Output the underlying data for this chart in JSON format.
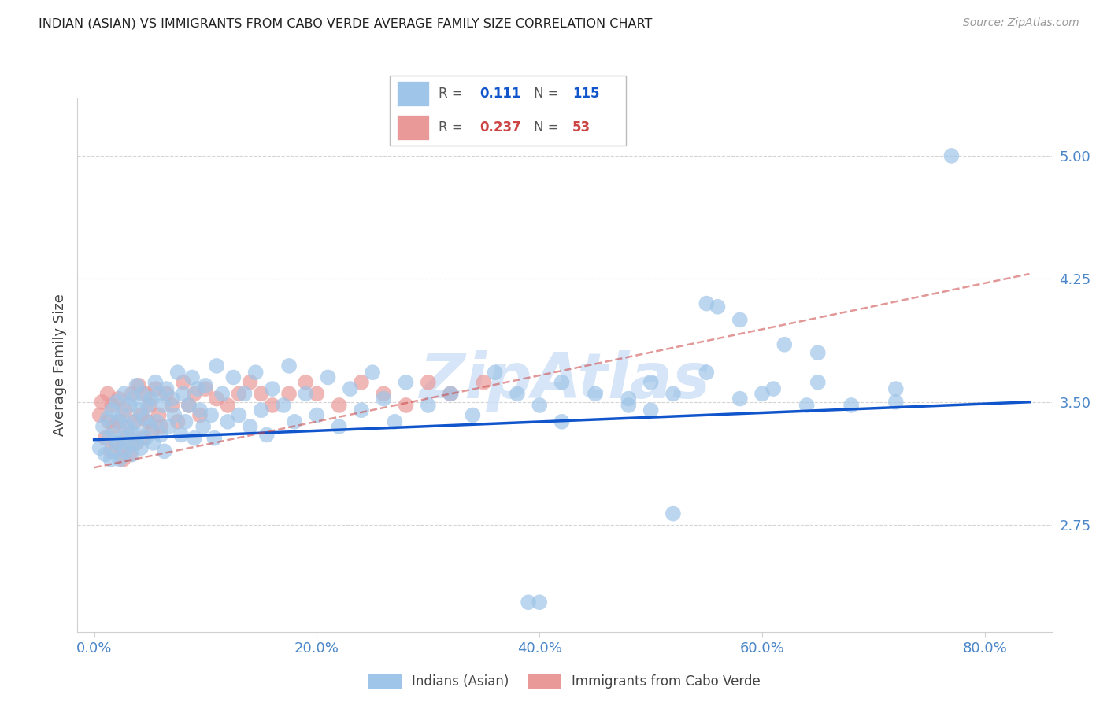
{
  "title": "INDIAN (ASIAN) VS IMMIGRANTS FROM CABO VERDE AVERAGE FAMILY SIZE CORRELATION CHART",
  "source": "Source: ZipAtlas.com",
  "ylabel": "Average Family Size",
  "xlabel_ticks": [
    "0.0%",
    "20.0%",
    "40.0%",
    "60.0%",
    "80.0%"
  ],
  "xlabel_vals": [
    0.0,
    0.2,
    0.4,
    0.6,
    0.8
  ],
  "ytick_labels": [
    "2.75",
    "3.50",
    "4.25",
    "5.00"
  ],
  "ytick_vals": [
    2.75,
    3.5,
    4.25,
    5.0
  ],
  "xlim": [
    -0.015,
    0.86
  ],
  "ylim": [
    2.1,
    5.35
  ],
  "R_blue": "0.111",
  "N_blue": "115",
  "R_pink": "0.237",
  "N_pink": "53",
  "legend_labels": [
    "Indians (Asian)",
    "Immigrants from Cabo Verde"
  ],
  "blue_color": "#9fc5e8",
  "pink_color": "#ea9999",
  "blue_line_color": "#1155cc",
  "pink_line_color": "#cc4444",
  "axis_color": "#4a86c8",
  "grid_color": "#d0d0d0",
  "watermark_color": "#ccdff5",
  "blue_trend_x": [
    0.0,
    0.84
  ],
  "blue_trend_y": [
    3.27,
    3.5
  ],
  "pink_trend_x": [
    0.0,
    0.84
  ],
  "pink_trend_y": [
    3.1,
    4.28
  ],
  "blue_x": [
    0.005,
    0.008,
    0.01,
    0.012,
    0.013,
    0.015,
    0.016,
    0.018,
    0.018,
    0.02,
    0.021,
    0.022,
    0.023,
    0.025,
    0.026,
    0.027,
    0.028,
    0.03,
    0.03,
    0.032,
    0.033,
    0.034,
    0.035,
    0.036,
    0.037,
    0.038,
    0.04,
    0.041,
    0.042,
    0.043,
    0.045,
    0.046,
    0.048,
    0.05,
    0.051,
    0.053,
    0.055,
    0.056,
    0.058,
    0.06,
    0.062,
    0.063,
    0.065,
    0.067,
    0.07,
    0.072,
    0.075,
    0.078,
    0.08,
    0.082,
    0.085,
    0.088,
    0.09,
    0.093,
    0.095,
    0.098,
    0.1,
    0.105,
    0.108,
    0.11,
    0.115,
    0.12,
    0.125,
    0.13,
    0.135,
    0.14,
    0.145,
    0.15,
    0.155,
    0.16,
    0.17,
    0.175,
    0.18,
    0.19,
    0.2,
    0.21,
    0.22,
    0.23,
    0.24,
    0.25,
    0.26,
    0.27,
    0.28,
    0.3,
    0.32,
    0.34,
    0.36,
    0.38,
    0.4,
    0.42,
    0.45,
    0.48,
    0.5,
    0.52,
    0.55,
    0.58,
    0.61,
    0.65,
    0.68,
    0.72,
    0.4,
    0.52,
    0.56,
    0.58,
    0.39,
    0.77,
    0.62,
    0.65,
    0.5,
    0.42,
    0.48,
    0.55,
    0.6,
    0.64,
    0.72
  ],
  "blue_y": [
    3.22,
    3.35,
    3.18,
    3.4,
    3.28,
    3.15,
    3.45,
    3.3,
    3.2,
    3.5,
    3.25,
    3.38,
    3.15,
    3.42,
    3.28,
    3.55,
    3.2,
    3.35,
    3.25,
    3.48,
    3.32,
    3.18,
    3.52,
    3.38,
    3.25,
    3.6,
    3.3,
    3.45,
    3.22,
    3.55,
    3.4,
    3.28,
    3.48,
    3.35,
    3.52,
    3.25,
    3.62,
    3.38,
    3.55,
    3.3,
    3.48,
    3.2,
    3.58,
    3.35,
    3.52,
    3.42,
    3.68,
    3.3,
    3.55,
    3.38,
    3.48,
    3.65,
    3.28,
    3.58,
    3.45,
    3.35,
    3.6,
    3.42,
    3.28,
    3.72,
    3.55,
    3.38,
    3.65,
    3.42,
    3.55,
    3.35,
    3.68,
    3.45,
    3.3,
    3.58,
    3.48,
    3.72,
    3.38,
    3.55,
    3.42,
    3.65,
    3.35,
    3.58,
    3.45,
    3.68,
    3.52,
    3.38,
    3.62,
    3.48,
    3.55,
    3.42,
    3.68,
    3.55,
    3.48,
    3.62,
    3.55,
    3.48,
    3.62,
    3.55,
    3.68,
    3.52,
    3.58,
    3.62,
    3.48,
    3.58,
    2.28,
    2.82,
    4.08,
    4.0,
    2.28,
    5.0,
    3.85,
    3.8,
    3.45,
    3.38,
    3.52,
    4.1,
    3.55,
    3.48,
    3.5
  ],
  "pink_x": [
    0.005,
    0.007,
    0.01,
    0.012,
    0.013,
    0.015,
    0.016,
    0.018,
    0.02,
    0.022,
    0.023,
    0.025,
    0.026,
    0.028,
    0.03,
    0.032,
    0.034,
    0.036,
    0.038,
    0.04,
    0.042,
    0.044,
    0.046,
    0.048,
    0.05,
    0.052,
    0.055,
    0.058,
    0.06,
    0.065,
    0.07,
    0.075,
    0.08,
    0.085,
    0.09,
    0.095,
    0.1,
    0.11,
    0.12,
    0.13,
    0.14,
    0.15,
    0.16,
    0.175,
    0.19,
    0.2,
    0.22,
    0.24,
    0.26,
    0.28,
    0.3,
    0.32,
    0.35
  ],
  "pink_y": [
    3.42,
    3.5,
    3.28,
    3.55,
    3.38,
    3.2,
    3.48,
    3.35,
    3.25,
    3.52,
    3.38,
    3.22,
    3.15,
    3.45,
    3.3,
    3.18,
    3.55,
    3.38,
    3.25,
    3.6,
    3.42,
    3.28,
    3.55,
    3.38,
    3.48,
    3.32,
    3.58,
    3.42,
    3.35,
    3.55,
    3.48,
    3.38,
    3.62,
    3.48,
    3.55,
    3.42,
    3.58,
    3.52,
    3.48,
    3.55,
    3.62,
    3.55,
    3.48,
    3.55,
    3.62,
    3.55,
    3.48,
    3.62,
    3.55,
    3.48,
    3.62,
    3.55,
    3.62
  ]
}
